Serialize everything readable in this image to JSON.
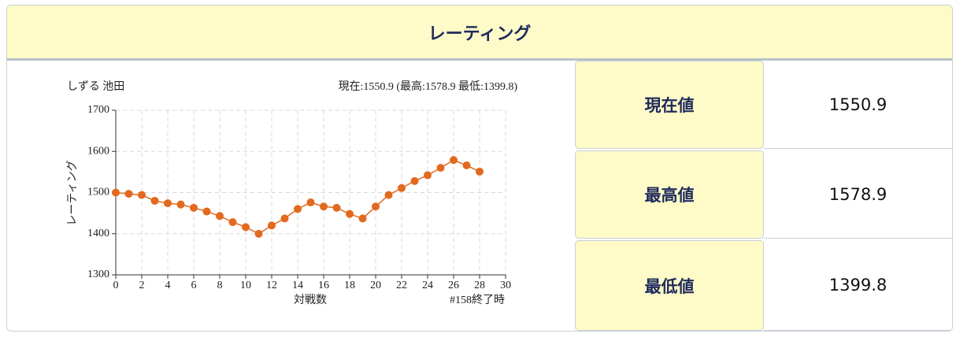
{
  "header": {
    "title": "レーティング"
  },
  "chart_data": {
    "type": "line",
    "title": "しずる 池田",
    "subtitle": "現在:1550.9 (最高:1578.9 最低:1399.8)",
    "x_label": "対戦数",
    "y_label": "レーティング",
    "annotation": "#158終了時",
    "x": [
      0,
      1,
      2,
      3,
      4,
      5,
      6,
      7,
      8,
      9,
      10,
      11,
      12,
      13,
      14,
      15,
      16,
      17,
      18,
      19,
      20,
      21,
      22,
      23,
      24,
      25,
      26,
      27,
      28
    ],
    "series": [
      {
        "name": "レーティング",
        "color": "#e2691d",
        "values": [
          1500,
          1497,
          1494,
          1480,
          1474,
          1471,
          1463,
          1454,
          1443,
          1428,
          1416,
          1399.8,
          1420,
          1437,
          1460,
          1476,
          1466,
          1463,
          1448,
          1437,
          1466,
          1494,
          1511,
          1528,
          1542,
          1560,
          1578.9,
          1566,
          1550.9
        ]
      }
    ],
    "xlim": [
      0,
      30
    ],
    "xticks": [
      0,
      2,
      4,
      6,
      8,
      10,
      12,
      14,
      16,
      18,
      20,
      22,
      24,
      26,
      28,
      30
    ],
    "ylim": [
      1300,
      1700
    ],
    "yticks": [
      1300,
      1400,
      1500,
      1600,
      1700
    ],
    "grid": true
  },
  "table": {
    "rows": [
      [
        "現在値",
        "1550.9"
      ],
      [
        "最高値",
        "1578.9"
      ],
      [
        "最低値",
        "1399.8"
      ]
    ]
  }
}
